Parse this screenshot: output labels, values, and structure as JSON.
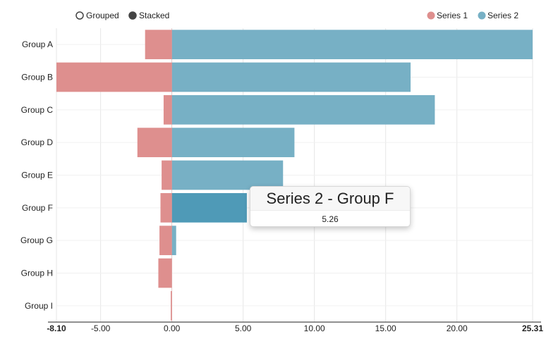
{
  "controls": [
    {
      "label": "Grouped",
      "selected": false
    },
    {
      "label": "Stacked",
      "selected": true
    }
  ],
  "colors": {
    "series1": "#de8f8e",
    "series2": "#77b0c5",
    "series2_highlight": "#4f9ab7",
    "grid": "#e6e6e6",
    "axis": "#222222"
  },
  "chart_data": {
    "type": "bar",
    "orientation": "horizontal",
    "stacked": true,
    "categories": [
      "Group A",
      "Group B",
      "Group C",
      "Group D",
      "Group E",
      "Group F",
      "Group G",
      "Group H",
      "Group I"
    ],
    "series": [
      {
        "name": "Series 1",
        "values": [
          -1.88,
          -8.1,
          -0.58,
          -2.42,
          -0.72,
          -0.8,
          -0.87,
          -0.95,
          -0.08
        ]
      },
      {
        "name": "Series 2",
        "values": [
          25.31,
          16.75,
          18.45,
          8.6,
          7.8,
          5.26,
          0.3,
          0.0,
          0.0
        ]
      }
    ],
    "xlim": [
      -8.1,
      25.31
    ],
    "xticks": [
      -8.1,
      -5.0,
      0.0,
      5.0,
      10.0,
      15.0,
      20.0,
      25.31
    ],
    "xtick_labels": [
      "-8.10",
      "-5.00",
      "0.00",
      "5.00",
      "10.00",
      "15.00",
      "20.00",
      "25.31"
    ],
    "grid": true,
    "legend": "top-right",
    "highlight": {
      "series": "Series 2",
      "category": "Group F"
    }
  },
  "tooltip": {
    "title": "Series 2 - Group F",
    "value": "5.26"
  }
}
